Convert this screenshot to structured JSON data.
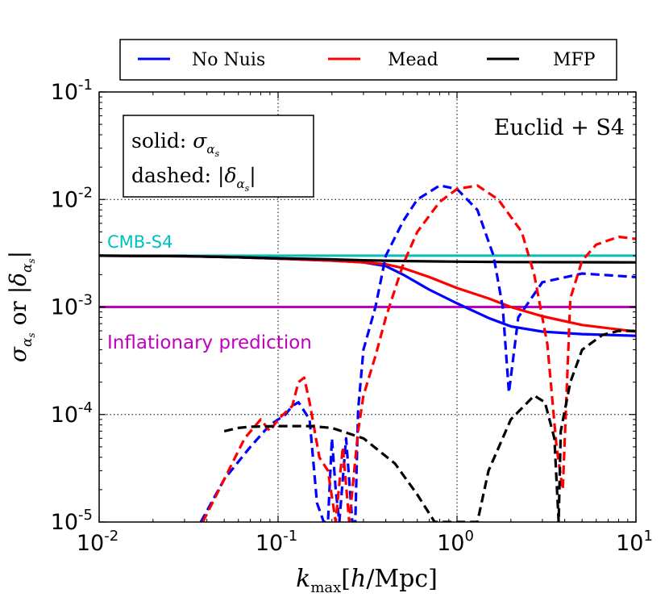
{
  "chart_data": {
    "type": "line",
    "title": "",
    "xlabel": "k_max[h/Mpc]",
    "ylabel": "σ_αs or |δ_αs|",
    "xscale": "log",
    "yscale": "log",
    "xlim": [
      0.01,
      10
    ],
    "ylim": [
      1e-05,
      0.1
    ],
    "grid": "dotted at major decades",
    "x_ticks": [
      {
        "value": 0.01,
        "base": "10",
        "exp": "-2"
      },
      {
        "value": 0.1,
        "base": "10",
        "exp": "-1"
      },
      {
        "value": 1,
        "base": "10",
        "exp": "0"
      },
      {
        "value": 10,
        "base": "10",
        "exp": "1"
      }
    ],
    "y_ticks": [
      {
        "value": 1e-05,
        "base": "10",
        "exp": "-5"
      },
      {
        "value": 0.0001,
        "base": "10",
        "exp": "-4"
      },
      {
        "value": 0.001,
        "base": "10",
        "exp": "-3"
      },
      {
        "value": 0.01,
        "base": "10",
        "exp": "-2"
      },
      {
        "value": 0.1,
        "base": "10",
        "exp": "-1"
      }
    ],
    "legend": {
      "placement": "top, above axes",
      "entries": [
        {
          "name": "No Nuis",
          "color": "#0000ff"
        },
        {
          "name": "Mead",
          "color": "#ff0000"
        },
        {
          "name": "MFP",
          "color": "#000000"
        }
      ]
    },
    "annotations": {
      "box_solid": "solid",
      "box_solid_symbol": "σ_αs",
      "box_dashed": "dashed",
      "box_dashed_symbol": "|δ_αs|",
      "survey": "Euclid + S4"
    },
    "reference_lines": [
      {
        "name": "CMB-S4",
        "value": 0.003,
        "color": "#00bfbf"
      },
      {
        "name": "Inflationary prediction",
        "value": 0.001,
        "color": "#bf00bf"
      }
    ],
    "series": [
      {
        "name": "No Nuis",
        "style": "solid",
        "color": "#0000ff",
        "x": [
          0.01,
          0.03,
          0.06,
          0.1,
          0.15,
          0.2,
          0.25,
          0.3,
          0.4,
          0.5,
          0.7,
          1.0,
          1.5,
          2.0,
          3.0,
          5.0,
          10.0
        ],
        "y": [
          0.003,
          0.00297,
          0.0029,
          0.00282,
          0.00275,
          0.0027,
          0.00265,
          0.0026,
          0.0024,
          0.002,
          0.00145,
          0.00108,
          0.00079,
          0.00066,
          0.00059,
          0.00056,
          0.00054
        ]
      },
      {
        "name": "Mead",
        "style": "solid",
        "color": "#ff0000",
        "x": [
          0.01,
          0.03,
          0.06,
          0.1,
          0.2,
          0.3,
          0.4,
          0.5,
          0.7,
          1.0,
          1.5,
          2.0,
          3.0,
          5.0,
          10.0
        ],
        "y": [
          0.003,
          0.00297,
          0.0029,
          0.00282,
          0.0027,
          0.0026,
          0.0025,
          0.0023,
          0.0019,
          0.0015,
          0.0012,
          0.001,
          0.00082,
          0.00068,
          0.00059
        ]
      },
      {
        "name": "MFP",
        "style": "solid",
        "color": "#000000",
        "x": [
          0.01,
          0.03,
          0.06,
          0.1,
          0.2,
          0.3,
          0.5,
          1.0,
          2.0,
          5.0,
          10.0
        ],
        "y": [
          0.003,
          0.00297,
          0.0029,
          0.00284,
          0.00277,
          0.00272,
          0.00268,
          0.00264,
          0.00262,
          0.00261,
          0.0026
        ]
      },
      {
        "name": "No Nuis",
        "style": "dashed",
        "color": "#0000ff",
        "x": [
          0.037,
          0.05,
          0.07,
          0.09,
          0.11,
          0.12,
          0.13,
          0.15,
          0.165,
          0.18,
          0.19,
          0.2,
          0.21,
          0.22,
          0.24,
          0.26,
          0.27,
          0.28,
          0.3,
          0.35,
          0.4,
          0.5,
          0.6,
          0.8,
          1.0,
          1.3,
          1.6,
          1.8,
          1.95,
          2.2,
          3.0,
          5.0,
          10.0
        ],
        "y": [
          1e-05,
          2.5e-05,
          5e-05,
          8e-05,
          0.0001,
          0.00012,
          0.00013,
          9e-05,
          1.5e-05,
          1e-05,
          1e-05,
          6e-05,
          2e-05,
          1e-05,
          6e-05,
          1e-05,
          1e-05,
          0.00011,
          0.0004,
          0.001,
          0.003,
          0.0063,
          0.01,
          0.0135,
          0.0125,
          0.008,
          0.003,
          0.001,
          0.00016,
          0.0008,
          0.0017,
          0.00205,
          0.0019
        ]
      },
      {
        "name": "Mead",
        "style": "dashed",
        "color": "#ff0000",
        "x": [
          0.038,
          0.05,
          0.065,
          0.08,
          0.09,
          0.1,
          0.12,
          0.13,
          0.14,
          0.15,
          0.17,
          0.19,
          0.21,
          0.23,
          0.25,
          0.28,
          0.3,
          0.35,
          0.4,
          0.5,
          0.6,
          0.8,
          1.0,
          1.3,
          1.7,
          2.3,
          2.7,
          3.2,
          3.6,
          3.9,
          4.3,
          5.0,
          6.0,
          8.0,
          10.0
        ],
        "y": [
          1e-05,
          2.5e-05,
          6e-05,
          9e-05,
          7e-05,
          9e-05,
          0.00012,
          0.0002,
          0.00022,
          0.00013,
          4e-05,
          3e-05,
          1e-05,
          5e-05,
          1e-05,
          7e-05,
          0.00015,
          0.00035,
          0.0008,
          0.0025,
          0.005,
          0.0095,
          0.0125,
          0.0135,
          0.01,
          0.005,
          0.002,
          0.00045,
          5e-05,
          2e-05,
          0.0012,
          0.0027,
          0.0038,
          0.0045,
          0.0043
        ]
      },
      {
        "name": "MFP",
        "style": "dashed",
        "color": "#000000",
        "x": [
          0.05,
          0.06,
          0.07,
          0.1,
          0.15,
          0.2,
          0.3,
          0.45,
          0.6,
          0.75,
          0.85,
          1.1,
          1.3,
          1.5,
          2.0,
          2.7,
          3.1,
          3.5,
          3.7,
          3.8,
          4.3,
          5.0,
          6.5,
          8.0,
          10.0
        ],
        "y": [
          7e-05,
          7.5e-05,
          7.7e-05,
          7.8e-05,
          7.8e-05,
          7.5e-05,
          6e-05,
          3.5e-05,
          1.8e-05,
          1e-05,
          1e-05,
          1e-05,
          1e-05,
          3e-05,
          9e-05,
          0.00015,
          0.00013,
          6e-05,
          1e-05,
          7e-05,
          0.0002,
          0.0004,
          0.00055,
          0.0006,
          0.0006
        ]
      }
    ]
  }
}
